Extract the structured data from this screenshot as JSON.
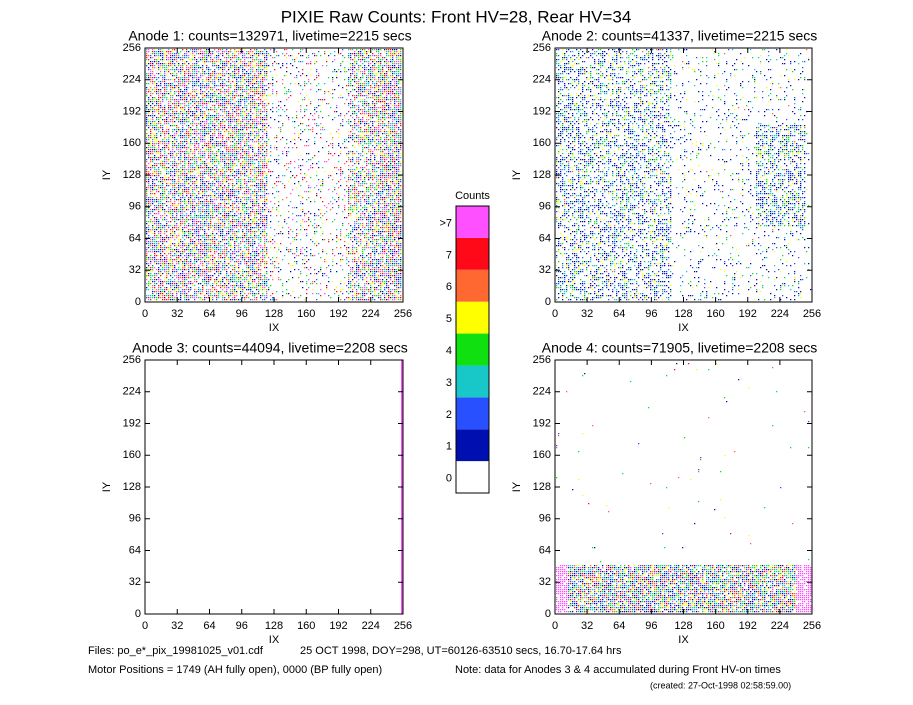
{
  "title": "PIXIE Raw Counts:  Front HV=28, Rear HV=34",
  "chart_data": [
    {
      "type": "heatmap",
      "title": "Anode 1: counts=132971, livetime=2215 secs",
      "xlabel": "IX",
      "ylabel": "IY",
      "xlim": [
        0,
        256
      ],
      "ylim": [
        0,
        256
      ],
      "xticks": [
        0,
        32,
        64,
        96,
        128,
        160,
        192,
        224,
        256
      ],
      "yticks": [
        0,
        32,
        64,
        96,
        128,
        160,
        192,
        224,
        256
      ]
    },
    {
      "type": "heatmap",
      "title": "Anode 2: counts=41337, livetime=2215 secs",
      "xlabel": "IX",
      "ylabel": "IY",
      "xlim": [
        0,
        256
      ],
      "ylim": [
        0,
        256
      ],
      "xticks": [
        0,
        32,
        64,
        96,
        128,
        160,
        192,
        224,
        256
      ],
      "yticks": [
        0,
        32,
        64,
        96,
        128,
        160,
        192,
        224,
        256
      ]
    },
    {
      "type": "heatmap",
      "title": "Anode 3: counts=44094, livetime=2208 secs",
      "xlabel": "IX",
      "ylabel": "IY",
      "xlim": [
        0,
        256
      ],
      "ylim": [
        0,
        256
      ],
      "xticks": [
        0,
        32,
        64,
        96,
        128,
        160,
        192,
        224,
        256
      ],
      "yticks": [
        0,
        32,
        64,
        96,
        128,
        160,
        192,
        224,
        256
      ]
    },
    {
      "type": "heatmap",
      "title": "Anode 4: counts=71905, livetime=2208 secs",
      "xlabel": "IX",
      "ylabel": "IY",
      "xlim": [
        0,
        256
      ],
      "ylim": [
        0,
        256
      ],
      "xticks": [
        0,
        32,
        64,
        96,
        128,
        160,
        192,
        224,
        256
      ],
      "yticks": [
        0,
        32,
        64,
        96,
        128,
        160,
        192,
        224,
        256
      ]
    }
  ],
  "colorbar": {
    "title": "Counts",
    "levels": [
      0,
      1,
      2,
      3,
      4,
      5,
      6,
      7,
      {
        "value": 8,
        "label": ">7"
      }
    ],
    "colors": [
      "#ffffff",
      "#0010b0",
      "#2850ff",
      "#18c8c8",
      "#10e010",
      "#ffff00",
      "#ff6830",
      "#ff0818",
      "#ff50ff"
    ]
  },
  "footer": {
    "files": "Files: po_e*_pix_19981025_v01.cdf",
    "date": "25 OCT 1998, DOY=298, UT=60126-63510 secs, 16.70-17.64 hrs",
    "motor": "Motor Positions = 1749 (AH fully open), 0000 (BP fully open)",
    "note": "Note: data for Anodes 3 & 4 accumulated during Front HV-on times",
    "created": "(created: 27-Oct-1998 02:58:59.00)"
  }
}
